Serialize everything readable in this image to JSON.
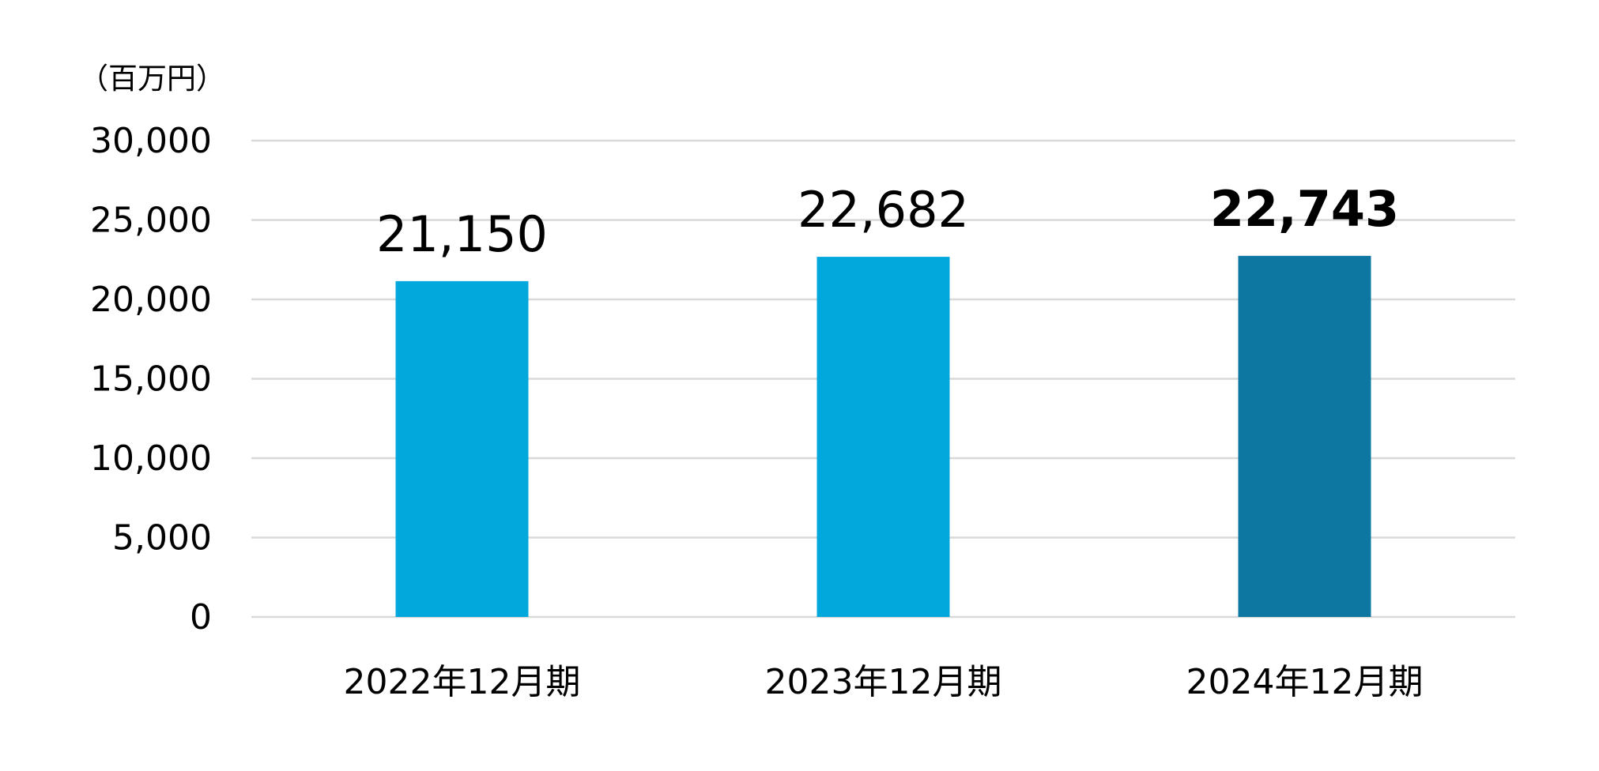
{
  "chart_data": {
    "type": "bar",
    "unit_label": "（百万円）",
    "categories": [
      "2022年12月期",
      "2023年12月期",
      "2024年12月期"
    ],
    "values": [
      21150,
      22682,
      22743
    ],
    "value_labels": [
      "21,150",
      "22,682",
      "22,743"
    ],
    "highlight_index": 2,
    "ylim": [
      0,
      30000
    ],
    "yticks": [
      0,
      5000,
      10000,
      15000,
      20000,
      25000,
      30000
    ],
    "ytick_labels": [
      "0",
      "5,000",
      "10,000",
      "15,000",
      "20,000",
      "25,000",
      "30,000"
    ],
    "grid": true,
    "legend": "none",
    "colors": {
      "bar": "#02A8DC",
      "bar_highlight": "#0E77A1",
      "grid": "#D9D9D9",
      "text": "#000000"
    }
  }
}
